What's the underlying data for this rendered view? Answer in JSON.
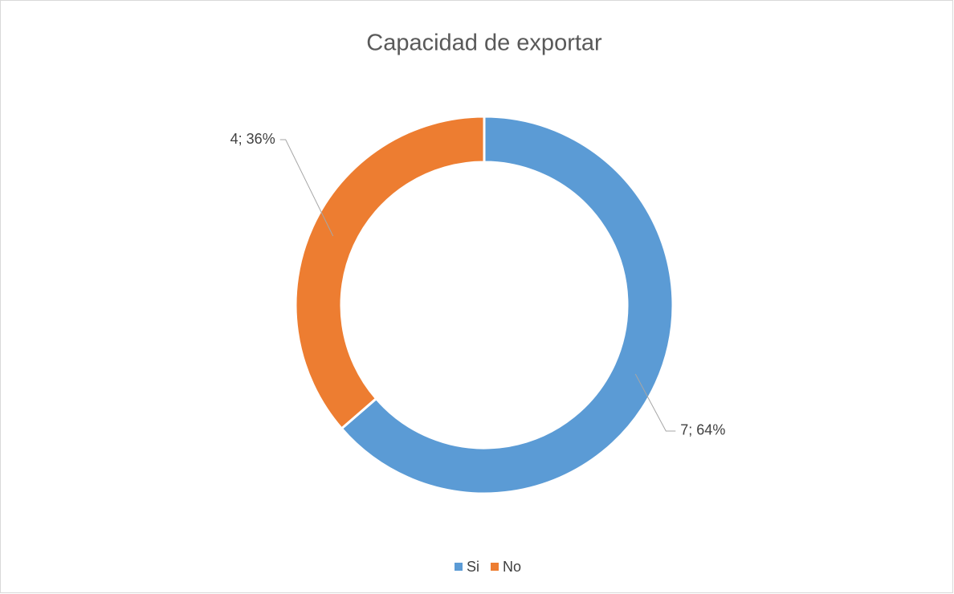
{
  "chart_data": {
    "type": "doughnut",
    "title": "Capacidad de exportar",
    "categories": [
      "Si",
      "No"
    ],
    "values": [
      7,
      4
    ],
    "value_labels": [
      "7; 64%",
      "4; 36%"
    ],
    "colors": [
      "#5b9bd5",
      "#ed7d31"
    ],
    "legend": "bottom"
  }
}
